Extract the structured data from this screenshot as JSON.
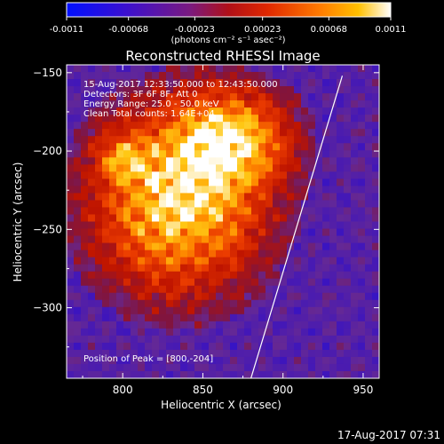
{
  "colorbar": {
    "tick_labels": [
      "-0.0011",
      "-0.00068",
      "-0.00023",
      "0.00023",
      "0.00068",
      "0.0011"
    ],
    "tick_values": [
      -0.0011,
      -0.00068,
      -0.00023,
      0.00023,
      0.00068,
      0.0011
    ],
    "range": [
      -0.0011,
      0.0011
    ],
    "units_label": "(photons cm⁻² s⁻¹ asec⁻²)",
    "colormap": "rainbow-like: blue -> purple -> red -> orange -> yellow -> white"
  },
  "chart_data": {
    "type": "heatmap",
    "title": "Reconstructed RHESSI Image",
    "xlabel": "Heliocentric X (arcsec)",
    "ylabel": "Heliocentric Y (arcsec)",
    "xlim": [
      765,
      960
    ],
    "ylim": [
      -345,
      -145
    ],
    "xticks": [
      800,
      850,
      900,
      950
    ],
    "yticks": [
      -150,
      -200,
      -250,
      -300
    ],
    "xtick_labels": [
      "800",
      "850",
      "900",
      "950"
    ],
    "ytick_labels": [
      "-150",
      "-200",
      "-250",
      "-300"
    ],
    "annotations": {
      "time": "15-Aug-2017 12:33:50.000 to 12:43:50.000",
      "detectors": "Detectors: 3F 6F 8F, Att 0",
      "energy": "Energy Range: 25.0 - 50.0 keV",
      "clean": "Clean     Total counts: 1.64E+04",
      "peak": "Position of Peak = [800,-204]"
    },
    "peak_position": [
      800,
      -204
    ],
    "limb_line": [
      [
        880,
        -345
      ],
      [
        937,
        -152
      ]
    ],
    "colors": {
      "low": "#0000ff",
      "mid_low": "#5a2aa8",
      "mid": "#c02000",
      "high": "#ffa000",
      "max": "#ffffff",
      "limb": "#ffffff"
    }
  },
  "footer": {
    "timestamp": "17-Aug-2017 07:31"
  }
}
